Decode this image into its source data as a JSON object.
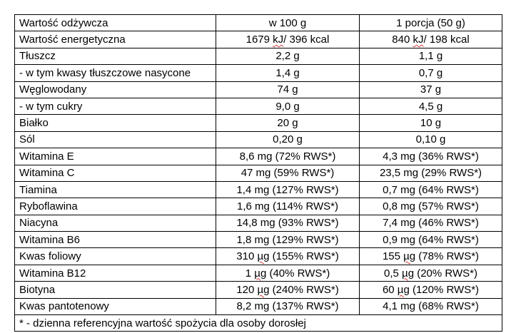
{
  "header": {
    "name": "Wartość odżywcza",
    "per100": "w 100 g",
    "portion": "1 porcja (50 g)"
  },
  "rows": [
    {
      "name": "Wartość energetyczna",
      "per100": "1679 kJ/ 396 kcal",
      "portion": "840 kJ/ 198 kcal"
    },
    {
      "name": "Tłuszcz",
      "per100": "2,2 g",
      "portion": "1,1 g"
    },
    {
      "name": "- w tym kwasy tłuszczowe nasycone",
      "per100": "1,4 g",
      "portion": "0,7 g"
    },
    {
      "name": "Węglowodany",
      "per100": "74 g",
      "portion": "37 g"
    },
    {
      "name": "- w tym cukry",
      "per100": "9,0 g",
      "portion": "4,5 g"
    },
    {
      "name": "Białko",
      "per100": "20 g",
      "portion": "10 g"
    },
    {
      "name": "Sól",
      "per100": "0,20 g",
      "portion": "0,10 g"
    },
    {
      "name": "Witamina E",
      "per100": "8,6 mg (72% RWS*)",
      "portion": "4,3 mg (36% RWS*)"
    },
    {
      "name": "Witamina C",
      "per100": "47 mg (59% RWS*)",
      "portion": "23,5 mg (29% RWS*)"
    },
    {
      "name": "Tiamina",
      "per100": "1,4 mg (127% RWS*)",
      "portion": "0,7 mg (64% RWS*)"
    },
    {
      "name": "Ryboflawina",
      "per100": "1,6 mg (114% RWS*)",
      "portion": "0,8 mg (57% RWS*)"
    },
    {
      "name": "Niacyna",
      "per100": "14,8 mg (93% RWS*)",
      "portion": "7,4 mg (46% RWS*)"
    },
    {
      "name": "Witamina B6",
      "per100": "1,8 mg (129% RWS*)",
      "portion": "0,9 mg (64% RWS*)"
    },
    {
      "name": "Kwas foliowy",
      "per100": "310 µg (155% RWS*)",
      "portion": "155 µg (78% RWS*)"
    },
    {
      "name": "Witamina B12",
      "per100": "1 µg (40% RWS*)",
      "portion": "0,5 µg (20% RWS*)"
    },
    {
      "name": "Biotyna",
      "per100": "120 µg (240% RWS*)",
      "portion": "60 µg (120% RWS*)"
    },
    {
      "name": "Kwas pantotenowy",
      "per100": "8,2 mg (137% RWS*)",
      "portion": "4,1 mg (68% RWS*)"
    }
  ],
  "footnote": "* - dzienna referencyjna wartość spożycia dla osoby dorosłej",
  "colors": {
    "border": "#000000",
    "text": "#000000",
    "spellcheck_underline": "#d63a3a"
  }
}
